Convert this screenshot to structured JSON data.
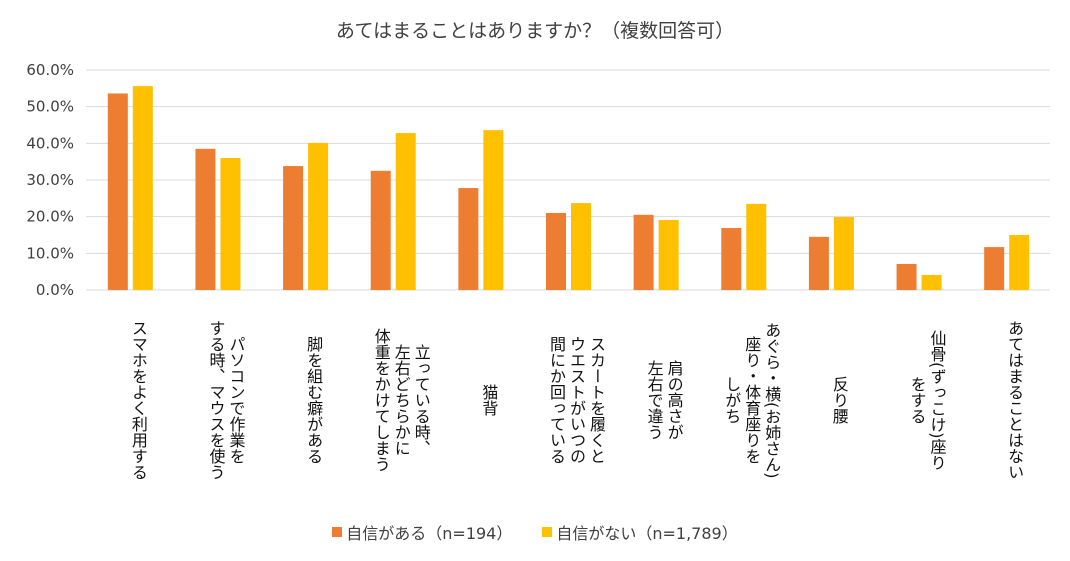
{
  "chart_data": {
    "type": "bar",
    "title": "あてはまることはありますか？（複数回答可）",
    "xlabel": "",
    "ylabel": "",
    "ylim": [
      0,
      60
    ],
    "yticks": [
      "0.0%",
      "10.0%",
      "20.0%",
      "30.0%",
      "40.0%",
      "50.0%",
      "60.0%"
    ],
    "grid": true,
    "legend_position": "bottom",
    "categories": [
      "スマホをよく利用する",
      "パソコンで作業を\nする時、マウスを使う",
      "脚を組む癖がある",
      "立っている時、\n左右どちらかに\n体重をかけてしまう",
      "猫背",
      "スカートを履くと\nウエストがいつの\n間にか回っている",
      "肩の高さが\n左右で違う",
      "あぐら・横(お姉さん)\n座り・体育座りを\nしがち",
      "反り腰",
      "仙骨(ずっこけ)座り\nをする",
      "あてはまることはない"
    ],
    "series": [
      {
        "name": "自信がある（n=194）",
        "color": "#ED7D31",
        "values": [
          53.6,
          38.5,
          33.8,
          32.5,
          27.8,
          21.0,
          20.5,
          16.9,
          14.5,
          7.1,
          11.7
        ]
      },
      {
        "name": "自信がない（n=1,789）",
        "color": "#FFC000",
        "values": [
          55.6,
          36.0,
          40.1,
          42.8,
          43.6,
          23.7,
          19.1,
          23.5,
          19.9,
          4.1,
          15.0
        ]
      }
    ]
  }
}
